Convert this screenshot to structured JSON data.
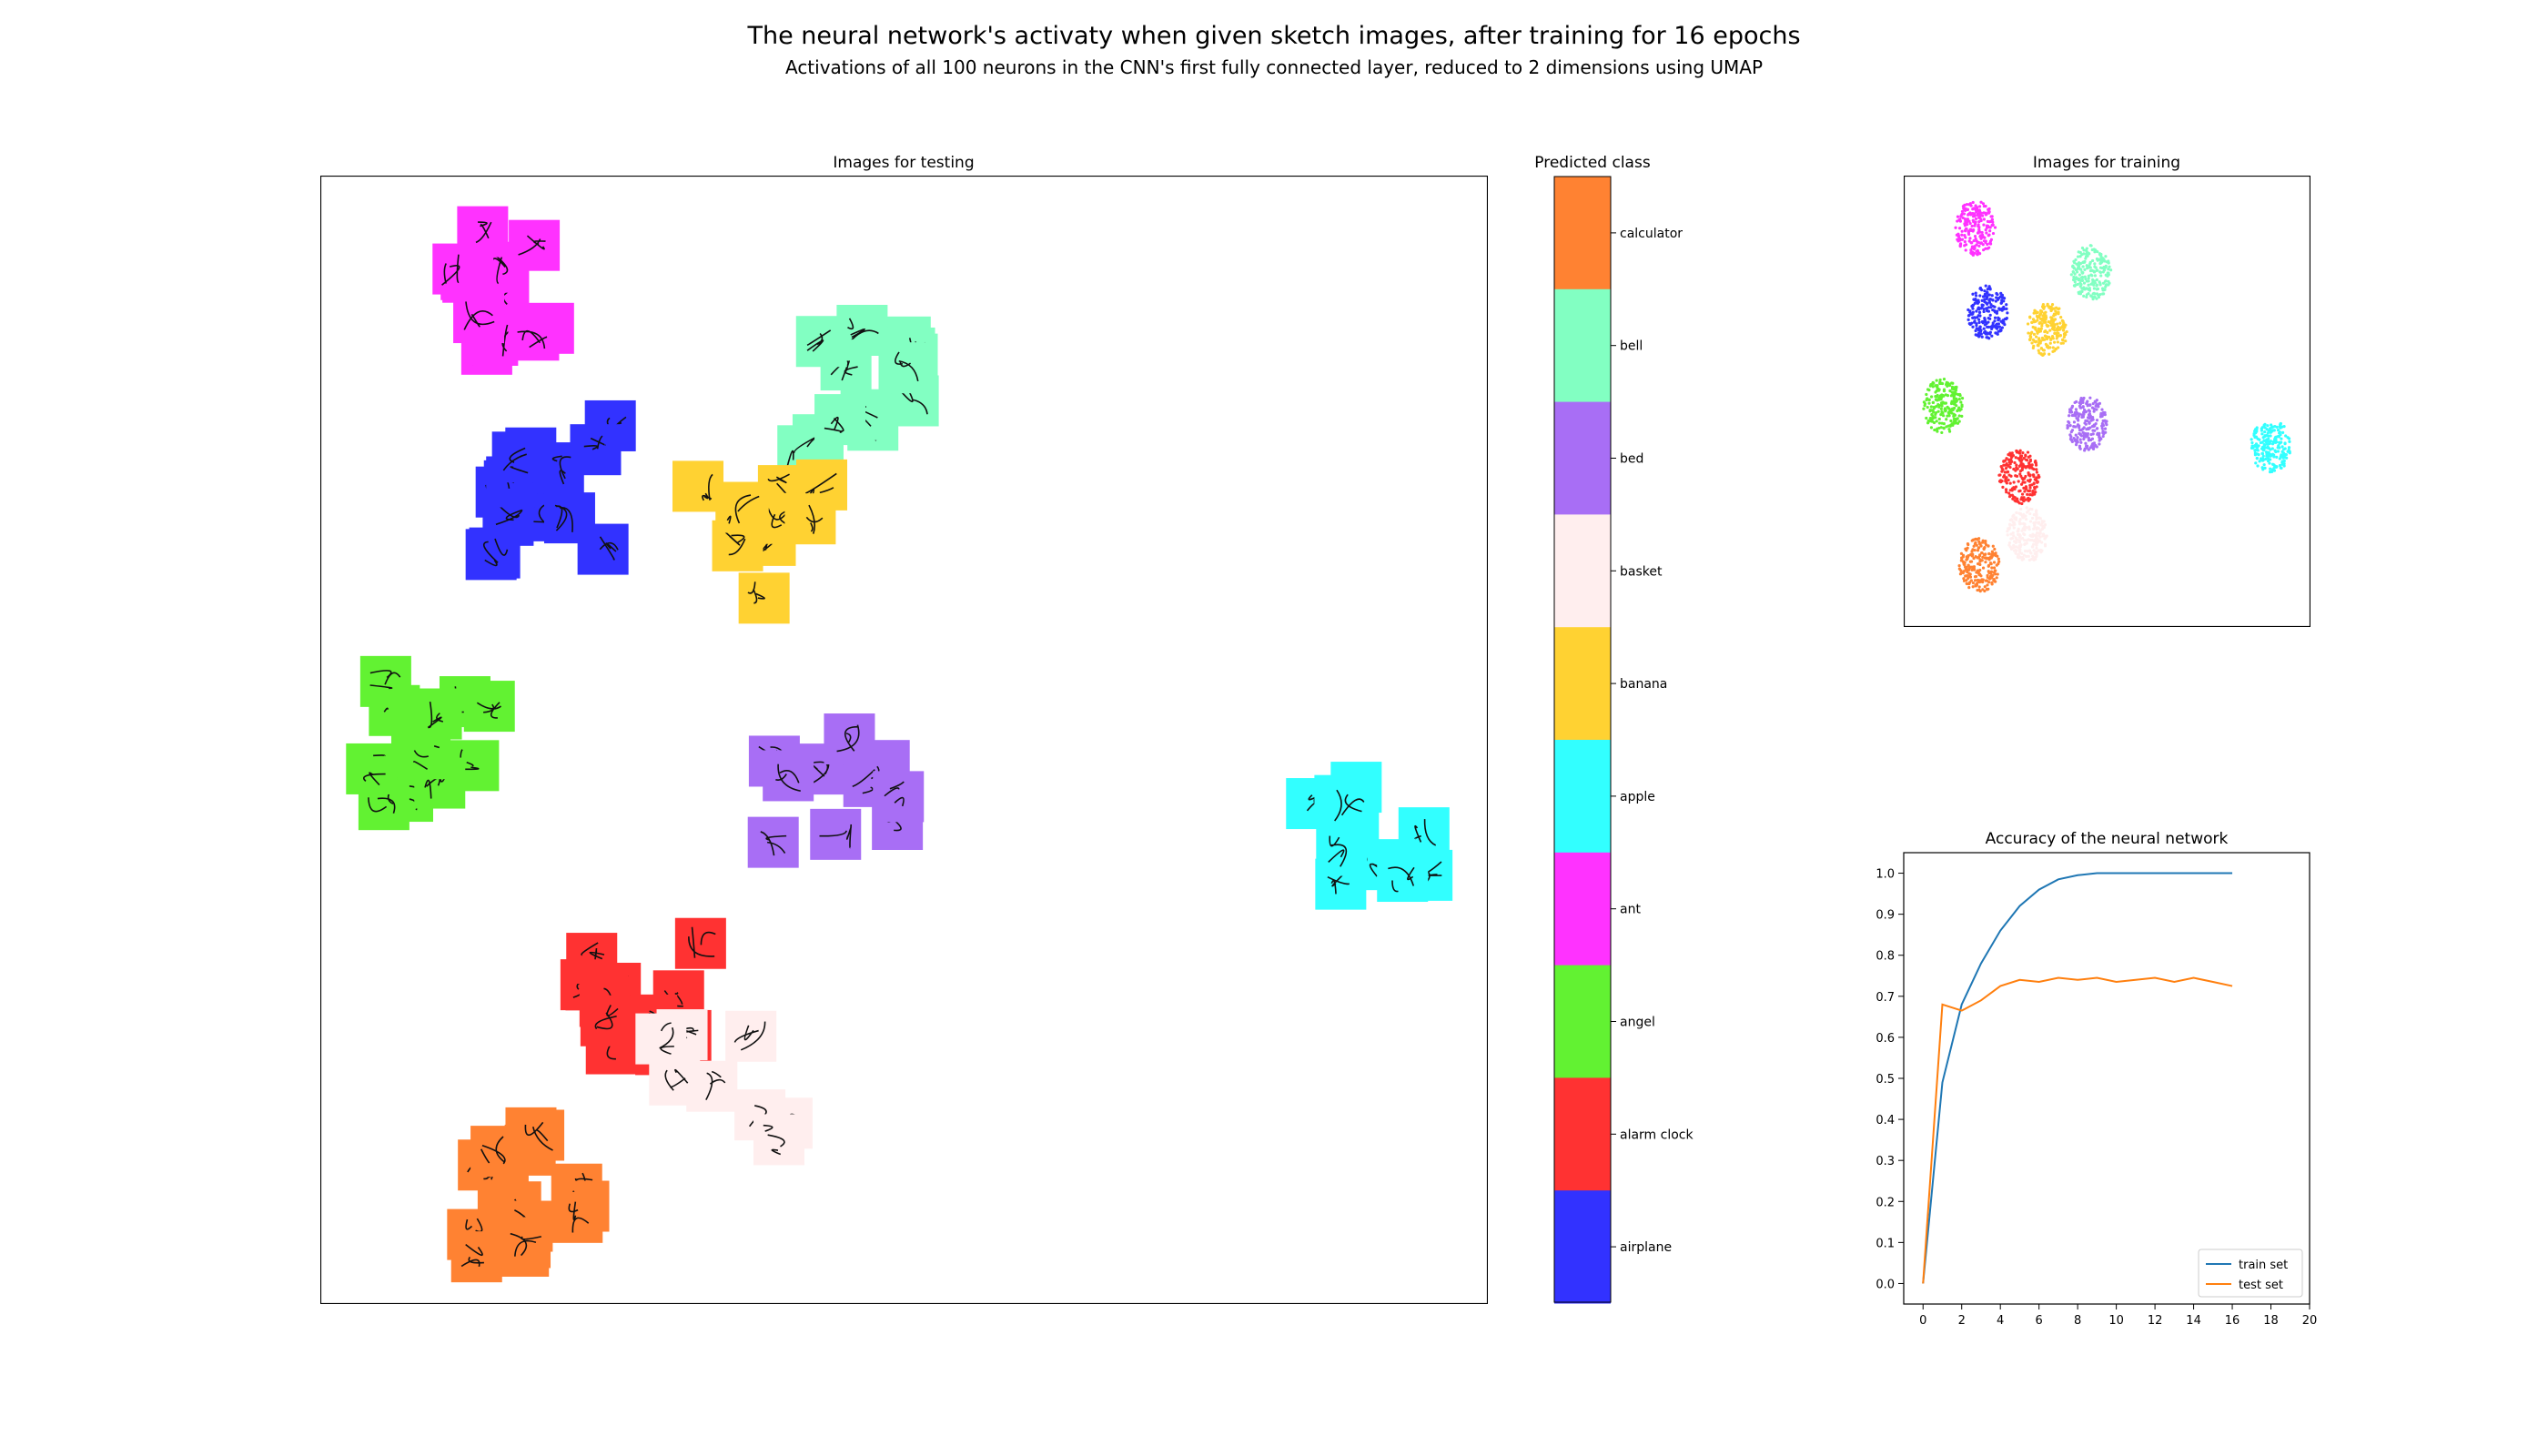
{
  "figure": {
    "title": "The neural network's activaty when given sketch images, after training for 16 epochs",
    "subtitle": "Activations of all 100 neurons in the CNN's first fully connected layer, reduced to 2 dimensions using UMAP"
  },
  "colors": {
    "airplane": "#3232ff",
    "alarm clock": "#ff3232",
    "angel": "#62f232",
    "ant": "#ff32ff",
    "apple": "#32ffff",
    "banana": "#ffd232",
    "basket": "#ffeeee",
    "bed": "#a86ef5",
    "bell": "#82ffc2",
    "calculator": "#ff8232",
    "train_line": "#1f77b4",
    "test_line": "#ff7f0e"
  },
  "chart_data": [
    {
      "type": "scatter",
      "title": "Images for testing",
      "marker": "sketch-thumbnail",
      "note_on_values": "UMAP projection coordinates; axes hidden, no ticks printed",
      "clusters": [
        {
          "class": "ant",
          "x": 0.17,
          "y": 0.9,
          "n": 12
        },
        {
          "class": "airplane",
          "x": 0.19,
          "y": 0.72,
          "n": 14
        },
        {
          "class": "bell",
          "x": 0.45,
          "y": 0.81,
          "n": 13
        },
        {
          "class": "banana",
          "x": 0.38,
          "y": 0.67,
          "n": 10
        },
        {
          "class": "angel",
          "x": 0.09,
          "y": 0.5,
          "n": 12
        },
        {
          "class": "bed",
          "x": 0.44,
          "y": 0.46,
          "n": 10
        },
        {
          "class": "apple",
          "x": 0.9,
          "y": 0.4,
          "n": 11
        },
        {
          "class": "alarm clock",
          "x": 0.27,
          "y": 0.26,
          "n": 14
        },
        {
          "class": "basket",
          "x": 0.34,
          "y": 0.18,
          "n": 8
        },
        {
          "class": "calculator",
          "x": 0.18,
          "y": 0.09,
          "n": 16
        }
      ]
    },
    {
      "type": "heatmap",
      "title": "Predicted class",
      "labels_top_to_bottom": [
        "calculator",
        "bell",
        "bed",
        "basket",
        "banana",
        "apple",
        "ant",
        "angel",
        "alarm clock",
        "airplane"
      ]
    },
    {
      "type": "scatter",
      "title": "Images for training",
      "note_on_values": "UMAP projection coordinates; axes hidden, no ticks printed",
      "clusters": [
        {
          "class": "ant",
          "x": 0.17,
          "y": 0.89
        },
        {
          "class": "airplane",
          "x": 0.2,
          "y": 0.7
        },
        {
          "class": "bell",
          "x": 0.46,
          "y": 0.79
        },
        {
          "class": "banana",
          "x": 0.35,
          "y": 0.66
        },
        {
          "class": "angel",
          "x": 0.09,
          "y": 0.49
        },
        {
          "class": "bed",
          "x": 0.45,
          "y": 0.45
        },
        {
          "class": "apple",
          "x": 0.91,
          "y": 0.4
        },
        {
          "class": "alarm clock",
          "x": 0.28,
          "y": 0.33
        },
        {
          "class": "basket",
          "x": 0.3,
          "y": 0.2
        },
        {
          "class": "calculator",
          "x": 0.18,
          "y": 0.13
        }
      ]
    },
    {
      "type": "line",
      "title": "Accuracy of the neural network",
      "xlim": [
        -1,
        20
      ],
      "ylim": [
        -0.05,
        1.05
      ],
      "xticks": [
        0,
        2,
        4,
        6,
        8,
        10,
        12,
        14,
        16,
        18,
        20
      ],
      "yticks": [
        0.0,
        0.1,
        0.2,
        0.3,
        0.4,
        0.5,
        0.6,
        0.7,
        0.8,
        0.9,
        1.0
      ],
      "legend": "bottom-right",
      "x": [
        0,
        1,
        2,
        3,
        4,
        5,
        6,
        7,
        8,
        9,
        10,
        11,
        12,
        13,
        14,
        15,
        16
      ],
      "series": [
        {
          "name": "train set",
          "color_key": "train_line",
          "values": [
            0.0,
            0.49,
            0.68,
            0.78,
            0.86,
            0.92,
            0.96,
            0.985,
            0.995,
            1.0,
            1.0,
            1.0,
            1.0,
            1.0,
            1.0,
            1.0,
            1.0
          ]
        },
        {
          "name": "test set",
          "color_key": "test_line",
          "values": [
            0.0,
            0.68,
            0.665,
            0.69,
            0.725,
            0.74,
            0.735,
            0.745,
            0.74,
            0.745,
            0.735,
            0.74,
            0.745,
            0.735,
            0.745,
            0.735,
            0.725
          ]
        }
      ]
    }
  ]
}
